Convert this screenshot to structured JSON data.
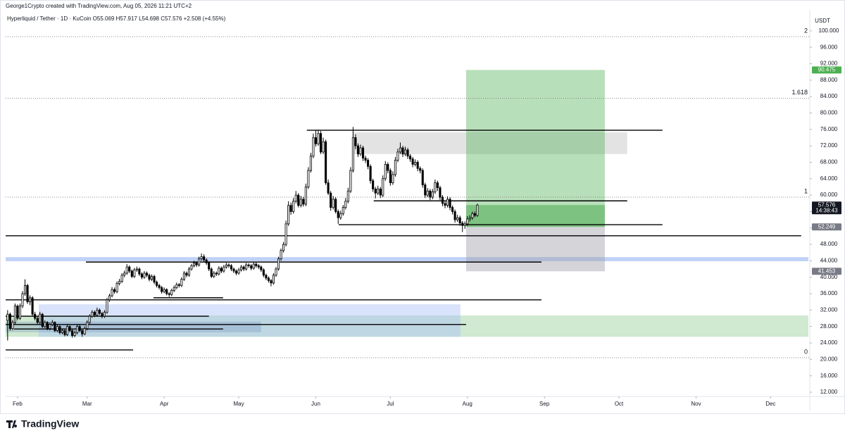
{
  "chart_data": {
    "type": "candlestick",
    "credit": "George1Crypto created with TradingView.com, Aug 05, 2026 11:21 UTC+2",
    "title": "Hyperliquid / Tether · 1D · KuCoin  O55.069 H57.917 L54.698 C57.576 +2.508 (+4.55%)",
    "currency": "USDT",
    "countdown": "14:38:43",
    "brand": "TradingView",
    "up_color": "#ffffff",
    "down_color": "#000000",
    "ylim": [
      10.97,
      104.6
    ],
    "xlim": [
      -0.8,
      322.2
    ],
    "yticks": [
      {
        "value": 12,
        "label": "12.000"
      },
      {
        "value": 16,
        "label": "16.000"
      },
      {
        "value": 20,
        "label": "20.000"
      },
      {
        "value": 24,
        "label": "24.000"
      },
      {
        "value": 28,
        "label": "28.000"
      },
      {
        "value": 32,
        "label": "32.000"
      },
      {
        "value": 36,
        "label": "36.000"
      },
      {
        "value": 40,
        "label": "40.000"
      },
      {
        "value": 44,
        "label": "44.000"
      },
      {
        "value": 48,
        "label": "48.000"
      },
      {
        "value": 52,
        "label": "52.000"
      },
      {
        "value": 56,
        "label": "56.000"
      },
      {
        "value": 60,
        "label": "60.000"
      },
      {
        "value": 64,
        "label": "64.000"
      },
      {
        "value": 68,
        "label": "68.000"
      },
      {
        "value": 72,
        "label": "72.000"
      },
      {
        "value": 76,
        "label": "76.000"
      },
      {
        "value": 80,
        "label": "80.000"
      },
      {
        "value": 84,
        "label": "84.000"
      },
      {
        "value": 88,
        "label": "88.000"
      },
      {
        "value": 92,
        "label": "92.000"
      },
      {
        "value": 96,
        "label": "96.000"
      },
      {
        "value": 100,
        "label": "100.000"
      }
    ],
    "xticks": [
      {
        "value": 4,
        "label": "Feb"
      },
      {
        "value": 32,
        "label": "Mar"
      },
      {
        "value": 63,
        "label": "Apr"
      },
      {
        "value": 93,
        "label": "May"
      },
      {
        "value": 124,
        "label": "Jun"
      },
      {
        "value": 154,
        "label": "Jul"
      },
      {
        "value": 185,
        "label": "Aug"
      },
      {
        "value": 216,
        "label": "Sep"
      },
      {
        "value": 246,
        "label": "Oct"
      },
      {
        "value": 277,
        "label": "Nov"
      },
      {
        "value": 307,
        "label": "Dec"
      }
    ],
    "fib_levels": [
      {
        "label": "2",
        "price": 98.6
      },
      {
        "label": "1.618",
        "price": 83.6
      },
      {
        "label": "1",
        "price": 59.5
      },
      {
        "label": "0",
        "price": 20.4
      }
    ],
    "zones": [
      {
        "from": -0.8,
        "to": 322.2,
        "low": 25.5,
        "high": 30.7,
        "color": "rgba(150,206,152,0.45)"
      },
      {
        "from": 12.5,
        "to": 182.2,
        "low": 25.5,
        "high": 33.4,
        "color": "rgba(170,192,246,0.45)"
      },
      {
        "from": -0.8,
        "to": 102,
        "low": 26.6,
        "high": 29.2,
        "color": "rgba(110,140,190,0.3)"
      },
      {
        "from": -0.8,
        "to": 322.2,
        "low": 43.9,
        "high": 44.9,
        "color": "rgba(150,180,240,0.6)"
      },
      {
        "from": 138.8,
        "to": 249.3,
        "low": 70.0,
        "high": 75.3,
        "color": "rgba(200,200,200,0.5)"
      }
    ],
    "hlines": [
      {
        "from": 120.4,
        "to": 263.5,
        "price": 75.8
      },
      {
        "from": 133.2,
        "to": 263.5,
        "price": 52.8
      },
      {
        "from": 147.3,
        "to": 249.3,
        "price": 58.6
      },
      {
        "from": -0.8,
        "to": 319.3,
        "price": 50.1
      },
      {
        "from": 31.5,
        "to": 214.8,
        "price": 43.7
      },
      {
        "from": 58.7,
        "to": 86.7,
        "price": 35.0
      },
      {
        "from": -0.8,
        "to": 214.8,
        "price": 34.5
      },
      {
        "from": -0.8,
        "to": 81,
        "price": 30.5
      },
      {
        "from": -0.8,
        "to": 184.5,
        "price": 28.5
      },
      {
        "from": 2.6,
        "to": 86.7,
        "price": 27.4
      },
      {
        "from": -0.8,
        "to": 50.5,
        "price": 22.3
      }
    ],
    "position": {
      "from": 184.5,
      "to": 240.3,
      "entry": 52.249,
      "target": 90.475,
      "stop": 41.453
    },
    "ohlc": [
      [
        29.5,
        32.0,
        24.6,
        31.0
      ],
      [
        31.0,
        31.4,
        27.0,
        27.5
      ],
      [
        27.5,
        29.6,
        27.1,
        29.0
      ],
      [
        29.0,
        33.6,
        28.6,
        33.0
      ],
      [
        33.0,
        33.4,
        29.5,
        30.0
      ],
      [
        30.0,
        33.6,
        29.6,
        33.0
      ],
      [
        33.0,
        36.6,
        32.5,
        36.0
      ],
      [
        36.0,
        39.5,
        35.5,
        38.0
      ],
      [
        38.0,
        38.4,
        33.5,
        34.0
      ],
      [
        34.0,
        35.6,
        33.2,
        35.0
      ],
      [
        35.0,
        35.4,
        30.6,
        31.0
      ],
      [
        31.0,
        31.6,
        29.5,
        30.0
      ],
      [
        30.0,
        30.5,
        28.5,
        29.0
      ],
      [
        29.0,
        31.6,
        28.6,
        31.0
      ],
      [
        31.0,
        31.3,
        27.6,
        28.0
      ],
      [
        28.0,
        29.5,
        27.6,
        29.0
      ],
      [
        29.0,
        29.3,
        27.1,
        27.5
      ],
      [
        27.5,
        29.0,
        27.1,
        28.5
      ],
      [
        28.5,
        29.6,
        28.1,
        29.0
      ],
      [
        29.0,
        29.3,
        26.6,
        27.0
      ],
      [
        27.0,
        28.5,
        26.6,
        28.0
      ],
      [
        28.0,
        28.3,
        26.1,
        26.5
      ],
      [
        26.5,
        27.5,
        26.1,
        27.0
      ],
      [
        27.0,
        27.3,
        25.6,
        26.0
      ],
      [
        26.0,
        28.5,
        25.7,
        28.0
      ],
      [
        28.0,
        28.3,
        26.6,
        27.0
      ],
      [
        27.0,
        27.3,
        25.3,
        25.8
      ],
      [
        25.8,
        27.0,
        25.4,
        26.5
      ],
      [
        26.5,
        28.5,
        26.1,
        28.0
      ],
      [
        28.0,
        28.4,
        26.6,
        27.0
      ],
      [
        27.0,
        27.3,
        25.5,
        26.2
      ],
      [
        26.2,
        28.0,
        25.9,
        27.5
      ],
      [
        27.5,
        29.5,
        27.1,
        29.0
      ],
      [
        29.0,
        31.0,
        28.6,
        30.5
      ],
      [
        30.5,
        32.0,
        30.1,
        31.5
      ],
      [
        31.5,
        31.9,
        30.3,
        30.8
      ],
      [
        30.8,
        32.6,
        30.4,
        32.0
      ],
      [
        32.0,
        32.4,
        30.8,
        31.2
      ],
      [
        31.2,
        31.6,
        30.0,
        30.5
      ],
      [
        30.5,
        32.0,
        30.1,
        31.5
      ],
      [
        31.5,
        35.0,
        31.1,
        34.5
      ],
      [
        34.5,
        36.0,
        34.0,
        35.5
      ],
      [
        35.5,
        37.6,
        35.1,
        37.0
      ],
      [
        37.0,
        37.5,
        36.0,
        36.5
      ],
      [
        36.5,
        39.0,
        36.1,
        38.5
      ],
      [
        38.5,
        39.6,
        38.0,
        39.0
      ],
      [
        39.0,
        41.0,
        38.6,
        40.5
      ],
      [
        40.5,
        41.6,
        40.0,
        41.0
      ],
      [
        41.0,
        43.2,
        40.6,
        42.5
      ],
      [
        42.5,
        42.9,
        41.0,
        41.5
      ],
      [
        41.5,
        41.9,
        39.8,
        40.2
      ],
      [
        40.2,
        42.3,
        39.8,
        41.8
      ],
      [
        41.8,
        42.6,
        41.3,
        42.0
      ],
      [
        42.0,
        42.4,
        40.3,
        40.8
      ],
      [
        40.8,
        41.2,
        39.5,
        40.0
      ],
      [
        40.0,
        41.5,
        39.6,
        41.0
      ],
      [
        41.0,
        41.4,
        40.0,
        40.5
      ],
      [
        40.5,
        40.9,
        39.0,
        39.5
      ],
      [
        39.5,
        40.7,
        39.1,
        40.2
      ],
      [
        40.2,
        40.6,
        38.3,
        38.8
      ],
      [
        38.8,
        39.2,
        37.5,
        38.0
      ],
      [
        38.0,
        38.4,
        37.0,
        37.5
      ],
      [
        37.5,
        37.9,
        36.0,
        36.5
      ],
      [
        36.5,
        37.5,
        36.1,
        37.0
      ],
      [
        37.0,
        37.3,
        35.6,
        36.0
      ],
      [
        36.0,
        36.4,
        35.2,
        35.8
      ],
      [
        35.8,
        37.2,
        35.4,
        36.8
      ],
      [
        36.8,
        38.0,
        36.4,
        37.5
      ],
      [
        37.5,
        38.7,
        37.1,
        38.2
      ],
      [
        38.2,
        38.6,
        37.5,
        38.0
      ],
      [
        38.0,
        40.0,
        37.6,
        39.5
      ],
      [
        39.5,
        41.5,
        39.1,
        41.0
      ],
      [
        41.0,
        41.4,
        40.0,
        40.5
      ],
      [
        40.5,
        42.5,
        40.1,
        42.0
      ],
      [
        42.0,
        43.3,
        41.6,
        42.8
      ],
      [
        42.8,
        44.0,
        42.4,
        43.5
      ],
      [
        43.5,
        43.9,
        42.5,
        43.0
      ],
      [
        43.0,
        45.0,
        42.6,
        44.5
      ],
      [
        44.5,
        45.8,
        44.0,
        45.0
      ],
      [
        45.0,
        45.6,
        43.8,
        44.2
      ],
      [
        44.2,
        44.6,
        43.0,
        43.5
      ],
      [
        43.5,
        43.9,
        41.5,
        42.0
      ],
      [
        42.0,
        42.4,
        39.8,
        40.2
      ],
      [
        40.2,
        41.5,
        39.8,
        41.0
      ],
      [
        41.0,
        41.4,
        40.3,
        40.8
      ],
      [
        40.8,
        42.7,
        40.4,
        42.2
      ],
      [
        42.2,
        42.6,
        41.0,
        41.5
      ],
      [
        41.5,
        43.0,
        41.1,
        42.5
      ],
      [
        42.5,
        43.5,
        42.1,
        43.0
      ],
      [
        43.0,
        43.4,
        42.3,
        42.8
      ],
      [
        42.8,
        43.2,
        41.5,
        42.0
      ],
      [
        42.0,
        42.4,
        41.0,
        41.5
      ],
      [
        41.5,
        41.9,
        40.5,
        41.0
      ],
      [
        41.0,
        42.3,
        40.6,
        41.8
      ],
      [
        41.8,
        43.0,
        41.4,
        42.5
      ],
      [
        42.5,
        42.9,
        41.5,
        42.0
      ],
      [
        42.0,
        43.5,
        41.6,
        43.0
      ],
      [
        43.0,
        43.4,
        42.3,
        42.8
      ],
      [
        42.8,
        43.2,
        41.7,
        42.2
      ],
      [
        42.2,
        43.7,
        41.8,
        43.2
      ],
      [
        43.2,
        43.6,
        42.3,
        42.8
      ],
      [
        42.8,
        43.2,
        42.0,
        42.5
      ],
      [
        42.5,
        42.9,
        41.3,
        41.8
      ],
      [
        41.8,
        42.2,
        40.0,
        40.5
      ],
      [
        40.5,
        40.9,
        39.3,
        39.8
      ],
      [
        39.8,
        40.2,
        38.7,
        39.2
      ],
      [
        39.2,
        39.6,
        37.8,
        38.6
      ],
      [
        38.6,
        41.0,
        38.2,
        40.5
      ],
      [
        40.5,
        42.5,
        40.1,
        42.0
      ],
      [
        42.0,
        45.0,
        41.6,
        44.5
      ],
      [
        44.5,
        47.0,
        44.0,
        46.5
      ],
      [
        46.5,
        48.6,
        46.0,
        48.0
      ],
      [
        48.0,
        53.8,
        47.5,
        53.0
      ],
      [
        53.0,
        58.5,
        52.5,
        57.5
      ],
      [
        57.5,
        58.2,
        55.2,
        56.0
      ],
      [
        56.0,
        59.3,
        55.5,
        58.5
      ],
      [
        58.5,
        61.0,
        58.0,
        60.0
      ],
      [
        60.0,
        60.5,
        57.0,
        57.5
      ],
      [
        57.5,
        59.8,
        57.0,
        59.0
      ],
      [
        59.0,
        59.6,
        57.2,
        57.8
      ],
      [
        57.8,
        62.8,
        57.3,
        62.0
      ],
      [
        62.0,
        66.8,
        61.5,
        66.0
      ],
      [
        66.0,
        70.3,
        65.5,
        69.5
      ],
      [
        69.5,
        75.0,
        69.0,
        74.0
      ],
      [
        74.0,
        75.8,
        71.8,
        72.5
      ],
      [
        72.5,
        75.9,
        72.0,
        75.0
      ],
      [
        75.0,
        75.6,
        70.0,
        70.5
      ],
      [
        70.5,
        74.0,
        70.0,
        73.0
      ],
      [
        73.0,
        73.5,
        62.5,
        63.0
      ],
      [
        63.0,
        63.8,
        60.0,
        60.5
      ],
      [
        60.5,
        61.0,
        56.2,
        57.0
      ],
      [
        57.0,
        59.8,
        56.5,
        59.0
      ],
      [
        59.0,
        59.5,
        55.5,
        56.0
      ],
      [
        56.0,
        56.5,
        53.0,
        54.5
      ],
      [
        54.5,
        56.2,
        54.0,
        55.5
      ],
      [
        55.5,
        57.6,
        55.0,
        57.0
      ],
      [
        57.0,
        59.3,
        56.5,
        58.5
      ],
      [
        58.5,
        61.8,
        58.0,
        61.0
      ],
      [
        61.0,
        66.8,
        60.5,
        66.0
      ],
      [
        66.0,
        76.6,
        65.5,
        74.0
      ],
      [
        74.0,
        74.8,
        71.2,
        72.0
      ],
      [
        72.0,
        72.6,
        69.3,
        70.0
      ],
      [
        70.0,
        72.3,
        69.5,
        71.5
      ],
      [
        71.5,
        72.0,
        68.3,
        69.0
      ],
      [
        69.0,
        69.6,
        67.8,
        68.5
      ],
      [
        68.5,
        69.0,
        66.3,
        67.0
      ],
      [
        67.0,
        67.5,
        62.8,
        63.5
      ],
      [
        63.5,
        64.0,
        60.8,
        61.5
      ],
      [
        61.5,
        62.0,
        59.2,
        60.5
      ],
      [
        60.5,
        62.3,
        60.0,
        61.5
      ],
      [
        61.5,
        62.0,
        59.3,
        60.0
      ],
      [
        60.0,
        64.8,
        59.5,
        64.0
      ],
      [
        64.0,
        68.3,
        63.5,
        67.5
      ],
      [
        67.5,
        68.0,
        65.3,
        66.0
      ],
      [
        66.0,
        66.5,
        62.3,
        63.0
      ],
      [
        63.0,
        65.8,
        62.5,
        65.0
      ],
      [
        65.0,
        69.3,
        64.5,
        68.5
      ],
      [
        68.5,
        71.3,
        68.0,
        70.5
      ],
      [
        70.5,
        72.8,
        70.0,
        71.5
      ],
      [
        71.5,
        72.0,
        69.3,
        70.0
      ],
      [
        70.0,
        71.8,
        69.5,
        71.0
      ],
      [
        71.0,
        71.5,
        68.8,
        69.5
      ],
      [
        69.5,
        70.0,
        68.1,
        68.8
      ],
      [
        68.8,
        69.3,
        66.8,
        67.5
      ],
      [
        67.5,
        68.7,
        67.0,
        68.0
      ],
      [
        68.0,
        68.5,
        65.8,
        66.5
      ],
      [
        66.5,
        67.0,
        65.3,
        66.0
      ],
      [
        66.0,
        66.5,
        61.8,
        62.5
      ],
      [
        62.5,
        63.0,
        59.3,
        60.0
      ],
      [
        60.0,
        61.7,
        59.5,
        61.0
      ],
      [
        61.0,
        61.5,
        58.8,
        59.5
      ],
      [
        59.5,
        61.5,
        59.0,
        60.8
      ],
      [
        60.8,
        63.8,
        60.3,
        63.0
      ],
      [
        63.0,
        63.5,
        61.0,
        61.8
      ],
      [
        61.8,
        62.3,
        58.8,
        59.5
      ],
      [
        59.5,
        60.0,
        57.3,
        58.0
      ],
      [
        58.0,
        58.5,
        56.8,
        57.5
      ],
      [
        57.5,
        59.7,
        57.0,
        59.0
      ],
      [
        59.0,
        59.5,
        56.3,
        57.0
      ],
      [
        57.0,
        57.5,
        55.3,
        56.0
      ],
      [
        56.0,
        56.5,
        53.3,
        54.0
      ],
      [
        54.0,
        55.2,
        53.5,
        54.5
      ],
      [
        54.5,
        55.0,
        52.5,
        53.2
      ],
      [
        53.2,
        53.7,
        51.0,
        52.6
      ],
      [
        52.6,
        53.6,
        51.8,
        53.0
      ],
      [
        53.0,
        54.9,
        52.5,
        54.2
      ],
      [
        54.2,
        55.1,
        53.6,
        54.5
      ],
      [
        54.5,
        56.0,
        54.0,
        55.5
      ],
      [
        55.5,
        56.0,
        54.6,
        55.069
      ],
      [
        55.069,
        57.917,
        54.698,
        57.576
      ]
    ]
  }
}
